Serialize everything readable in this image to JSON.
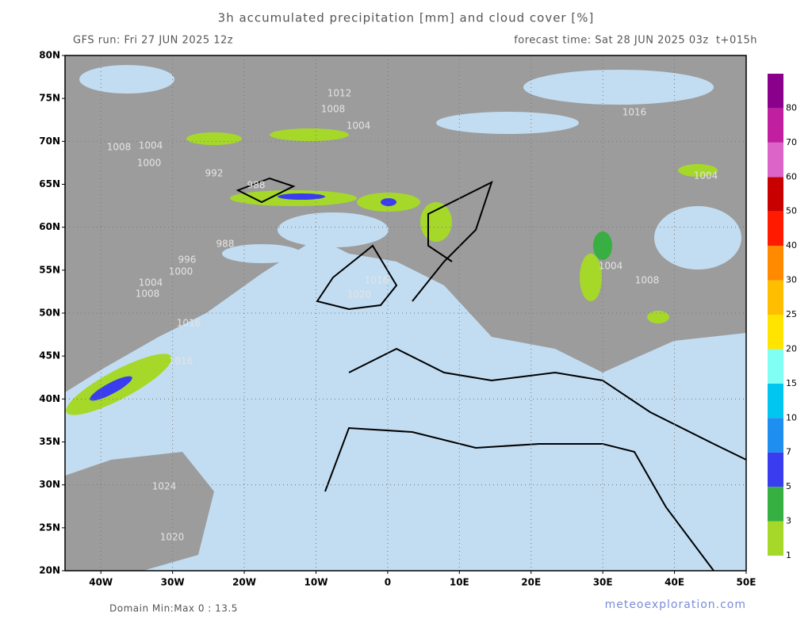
{
  "header": {
    "title": "3h accumulated precipitation [mm] and cloud cover [%]",
    "run": "GFS run: Fri 27 JUN 2025 12z",
    "forecast": "forecast time: Sat 28 JUN 2025 03z  t+015h"
  },
  "map": {
    "lat_labels": [
      "80N",
      "75N",
      "70N",
      "65N",
      "60N",
      "55N",
      "50N",
      "45N",
      "40N",
      "35N",
      "30N",
      "25N",
      "20N"
    ],
    "lon_labels": [
      "40W",
      "30W",
      "20W",
      "10W",
      "0",
      "10E",
      "20E",
      "30E",
      "40E",
      "50E"
    ],
    "isobar_labels": [
      "1012",
      "1008",
      "1004",
      "1016",
      "1008",
      "1004",
      "1000",
      "992",
      "988",
      "988",
      "996",
      "1000",
      "1004",
      "1008",
      "1016",
      "1016",
      "1020",
      "1016",
      "1024",
      "1020",
      "1004",
      "1004",
      "1008"
    ]
  },
  "legend": {
    "labels": [
      "1",
      "3",
      "5",
      "7",
      "10",
      "15",
      "20",
      "25",
      "30",
      "40",
      "50",
      "60",
      "70",
      "80"
    ],
    "colors": [
      "#a6d82a",
      "#36b040",
      "#3a3cf0",
      "#1e8ef0",
      "#00c6f0",
      "#80fff4",
      "#ffe400",
      "#ffbe00",
      "#ff8a00",
      "#ff1a00",
      "#c80000",
      "#dc64c8",
      "#c020a0",
      "#8a008a"
    ]
  },
  "footer": {
    "domain": "Domain Min:Max 0 : 13.5",
    "site": "meteoexploration.com"
  }
}
